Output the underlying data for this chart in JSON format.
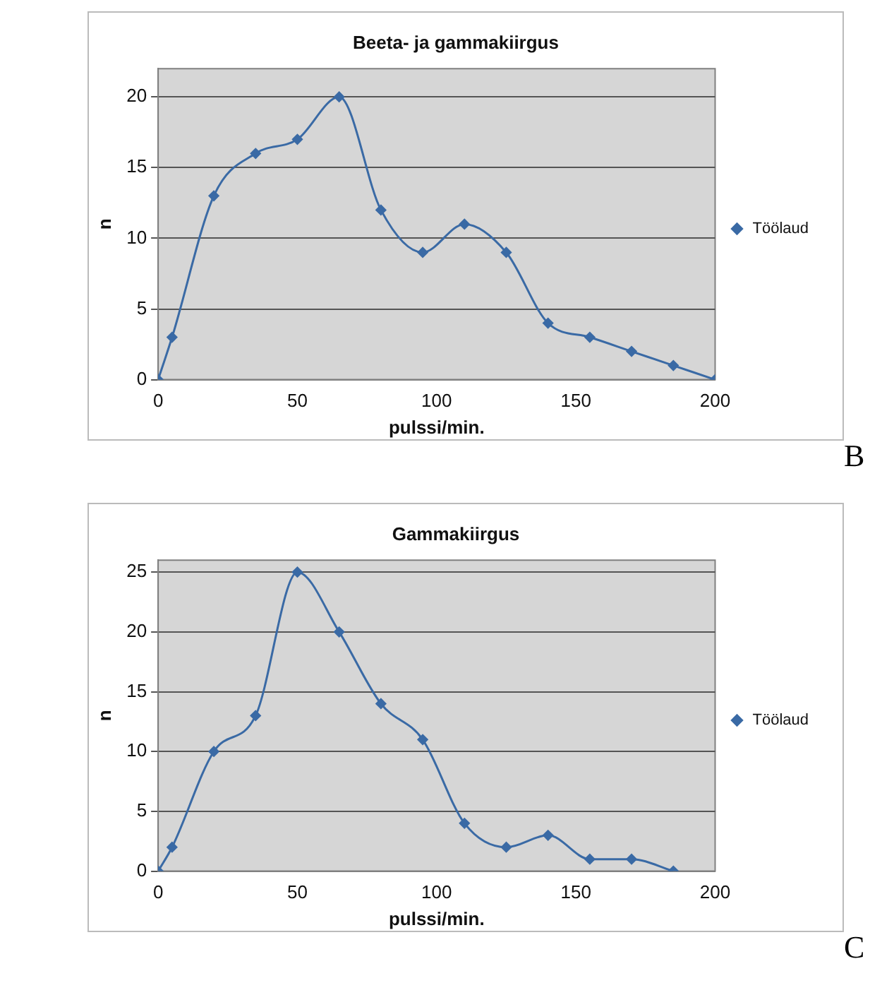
{
  "chart_data": [
    {
      "type": "line",
      "title": "Beeta- ja gammakiirgus",
      "xlabel": "pulssi/min.",
      "ylabel": "n",
      "annotations": [
        "B"
      ],
      "legend": "right",
      "grid": "y",
      "marker": "diamond",
      "xlim": [
        0,
        200
      ],
      "xticks": [
        0,
        50,
        100,
        150,
        200
      ],
      "ylim": [
        0,
        22
      ],
      "yticks": [
        0,
        5,
        10,
        15,
        20
      ],
      "series": [
        {
          "name": "Töölaud",
          "color": "#3a6aa5",
          "x": [
            0,
            5,
            20,
            35,
            50,
            65,
            80,
            95,
            110,
            125,
            140,
            155,
            170,
            185,
            200
          ],
          "values": [
            0,
            3,
            13,
            16,
            17,
            20,
            12,
            9,
            11,
            9,
            4,
            3,
            2,
            1,
            0
          ]
        }
      ]
    },
    {
      "type": "line",
      "title": "Gammakiirgus",
      "xlabel": "pulssi/min.",
      "ylabel": "n",
      "annotations": [
        "C"
      ],
      "legend": "right",
      "grid": "y",
      "marker": "diamond",
      "xlim": [
        0,
        200
      ],
      "xticks": [
        0,
        50,
        100,
        150,
        200
      ],
      "ylim": [
        0,
        26
      ],
      "yticks": [
        0,
        5,
        10,
        15,
        20,
        25
      ],
      "series": [
        {
          "name": "Töölaud",
          "color": "#3a6aa5",
          "x": [
            0,
            5,
            20,
            35,
            50,
            65,
            80,
            95,
            110,
            125,
            140,
            155,
            170,
            185
          ],
          "values": [
            0,
            2,
            10,
            13,
            25,
            20,
            14,
            11,
            4,
            2,
            3,
            1,
            1,
            0
          ]
        }
      ]
    }
  ]
}
